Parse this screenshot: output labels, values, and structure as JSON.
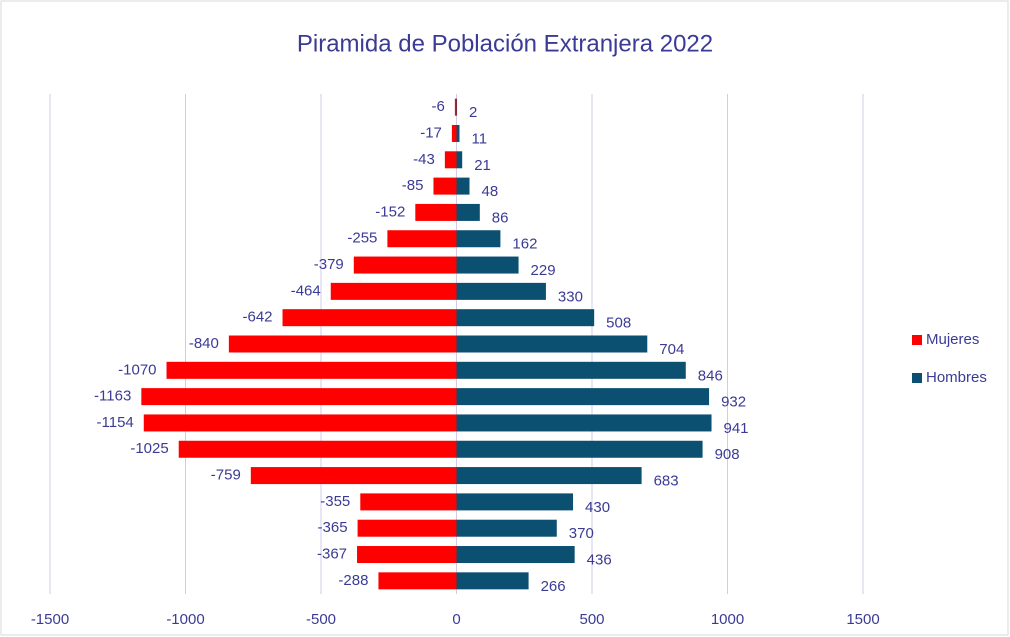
{
  "chart_data": {
    "type": "bar",
    "orientation": "horizontal",
    "title": "Piramida de Población Extranjera 2022",
    "series": [
      {
        "name": "Mujeres",
        "color": "#ff0000",
        "values": [
          -6,
          -17,
          -43,
          -85,
          -152,
          -255,
          -379,
          -464,
          -642,
          -840,
          -1070,
          -1163,
          -1154,
          -1025,
          -759,
          -355,
          -365,
          -367,
          -288
        ]
      },
      {
        "name": "Hombres",
        "color": "#0b4f71",
        "values": [
          2,
          11,
          21,
          48,
          86,
          162,
          229,
          330,
          508,
          704,
          846,
          932,
          941,
          908,
          683,
          430,
          370,
          436,
          266
        ]
      }
    ],
    "xlim": [
      -1500,
      1500
    ],
    "xticks": [
      -1500,
      -1000,
      -500,
      0,
      500,
      1000,
      1500
    ],
    "grid": true,
    "legend": "right"
  }
}
